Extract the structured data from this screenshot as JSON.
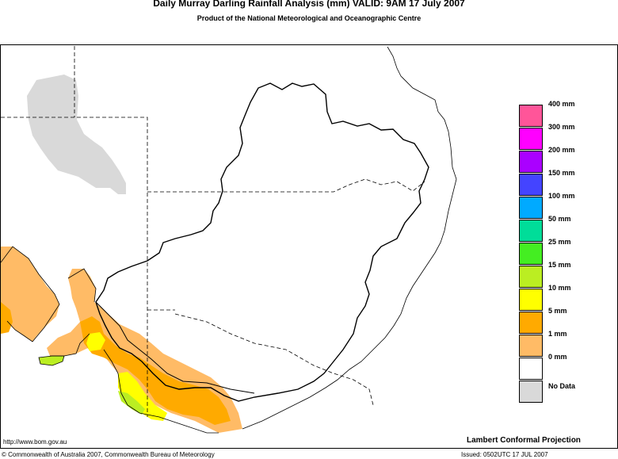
{
  "header": {
    "title": "Daily Murray Darling Rainfall Analysis (mm)  VALID: 9AM 17 July 2007",
    "subtitle": "Product of the National Meteorological and Oceanographic Centre"
  },
  "legend": {
    "items": [
      {
        "label": "400 mm",
        "color": "#ff5599"
      },
      {
        "label": "300 mm",
        "color": "#ff00ff"
      },
      {
        "label": "200 mm",
        "color": "#aa00ff"
      },
      {
        "label": "150 mm",
        "color": "#4444ff"
      },
      {
        "label": "100 mm",
        "color": "#00aaff"
      },
      {
        "label": "50 mm",
        "color": "#00dd99"
      },
      {
        "label": "25 mm",
        "color": "#44ee22"
      },
      {
        "label": "15 mm",
        "color": "#bbee22"
      },
      {
        "label": "10 mm",
        "color": "#ffff00"
      },
      {
        "label": "5 mm",
        "color": "#ffaa00"
      },
      {
        "label": "1 mm",
        "color": "#ffbb66"
      },
      {
        "label": "0 mm",
        "color": "#ffffff"
      },
      {
        "label": "No Data",
        "color": "#d9d9d9"
      }
    ]
  },
  "footer": {
    "url": "http://www.bom.gov.au",
    "projection": "Lambert Conformal Projection",
    "copyright": "© Commonwealth of Australia 2007, Commonwealth Bureau of Meteorology",
    "issued": "Issued: 0502UTC 17 JUL 2007"
  }
}
